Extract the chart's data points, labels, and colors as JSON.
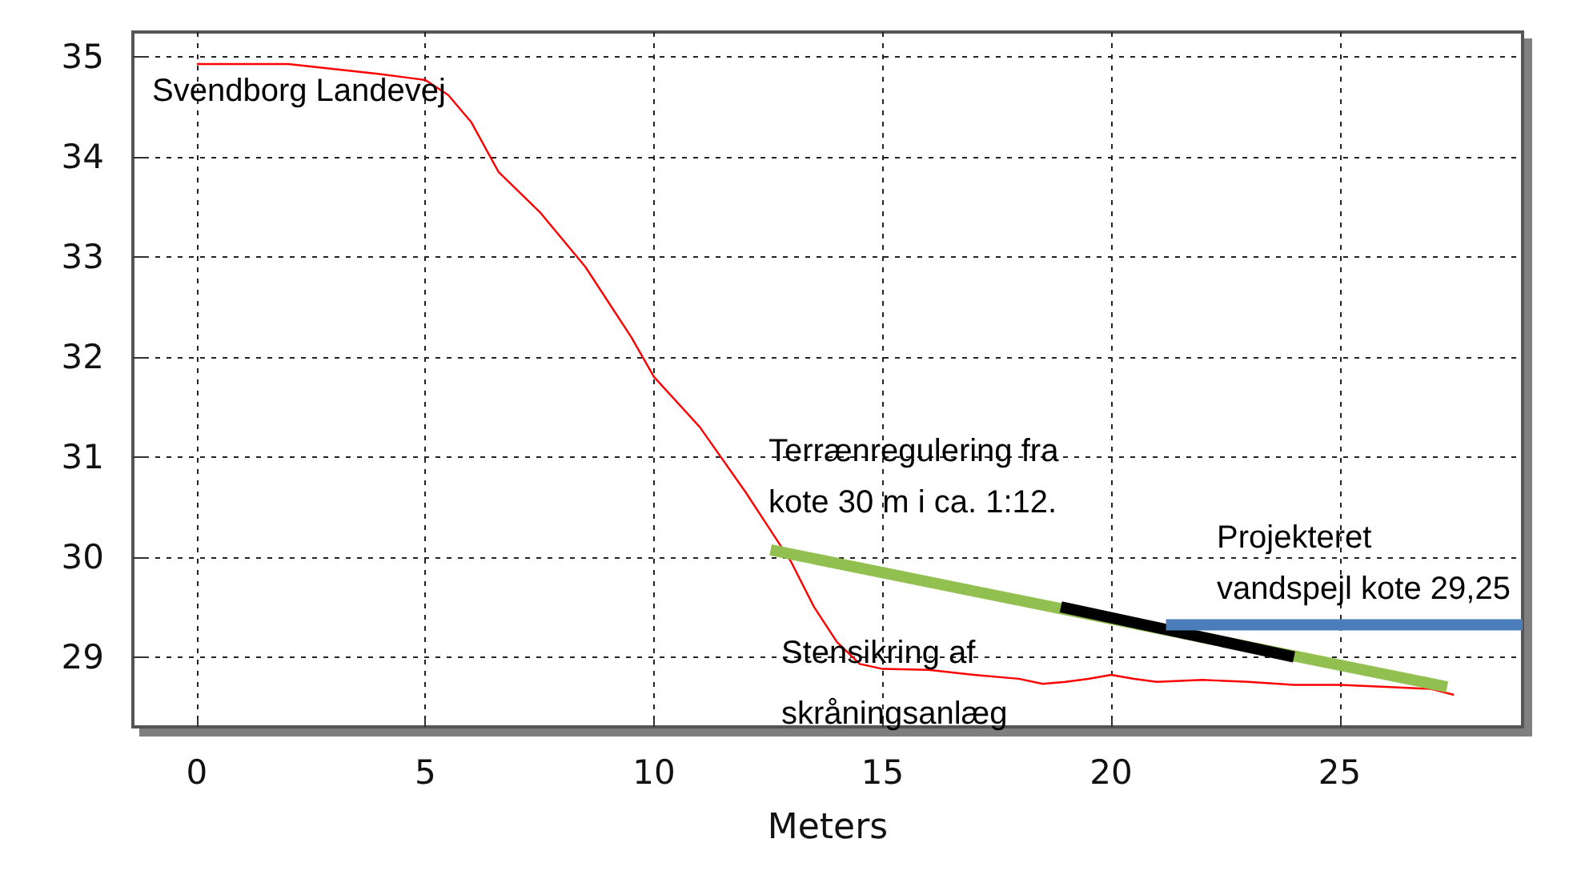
{
  "chart_data": {
    "type": "line",
    "xlabel": "Meters",
    "xlim": [
      -1.4,
      29
    ],
    "xticks": [
      0,
      5,
      10,
      15,
      20,
      25
    ],
    "ylim": [
      28.3,
      35.25
    ],
    "yticks": [
      29,
      30,
      31,
      32,
      33,
      34,
      35
    ],
    "grid": true,
    "marker": "none",
    "line_style": "solid",
    "series": [
      {
        "color": "#ff0000",
        "x": [
          0,
          2,
          3,
          4,
          5,
          5.5,
          6,
          6.6,
          7.5,
          8.5,
          9.5,
          10,
          11,
          12,
          12.5,
          13,
          13.5,
          14,
          14.5,
          15,
          16,
          17,
          18,
          18.5,
          19,
          19.5,
          20,
          20.5,
          21,
          22,
          23,
          24,
          25,
          26,
          27,
          27.5
        ],
        "values": [
          34.93,
          34.93,
          34.88,
          34.83,
          34.77,
          34.62,
          34.35,
          33.85,
          33.45,
          32.9,
          32.2,
          31.8,
          31.3,
          30.65,
          30.3,
          29.95,
          29.5,
          29.15,
          28.93,
          28.88,
          28.87,
          28.82,
          28.78,
          28.73,
          28.75,
          28.78,
          28.82,
          28.78,
          28.75,
          28.77,
          28.75,
          28.72,
          28.72,
          28.7,
          28.68,
          28.62
        ]
      },
      {
        "color": "#92c050",
        "x": [
          12.55,
          27.35
        ],
        "values": [
          30.07,
          28.7
        ]
      },
      {
        "color": "#000000",
        "x": [
          18.9,
          24.0
        ],
        "values": [
          29.5,
          29.0
        ]
      },
      {
        "color": "#4a7ebb",
        "x": [
          21.2,
          29.0
        ],
        "values": [
          29.32,
          29.32
        ]
      }
    ],
    "annotations": [
      "Svendborg Landevej",
      "Terrænregulering fra\nkote 30 m i ca. 1:12.",
      "Projekteret\nvandspejl kote 29,25",
      "Stensikring af\nskråningsanlæg"
    ]
  }
}
